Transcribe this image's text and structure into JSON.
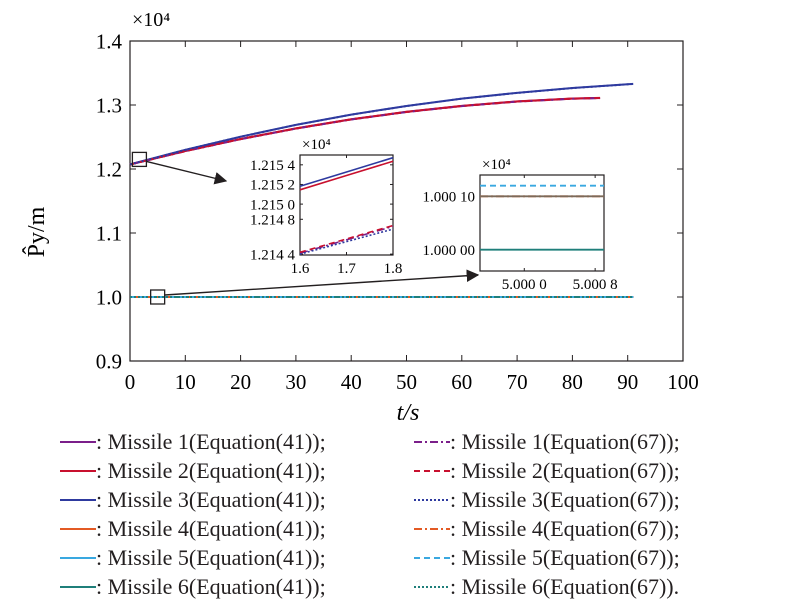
{
  "chart_data": {
    "type": "line",
    "main": {
      "xlabel": "t/s",
      "ylabel": "P̂y/m",
      "multiplier": "×10⁴",
      "xlim": [
        0,
        100
      ],
      "ylim": [
        0.9,
        1.4
      ],
      "xticks": [
        "0",
        "10",
        "20",
        "30",
        "40",
        "50",
        "60",
        "70",
        "80",
        "90",
        "100"
      ],
      "yticks": [
        "0.9",
        "1.0",
        "1.1",
        "1.2",
        "1.3",
        "1.4"
      ],
      "grid": false,
      "series": [
        {
          "name": "Missile 1(Equation(41))",
          "color": "#7b1f8a",
          "dash": "solid",
          "x": [
            0,
            10,
            20,
            30,
            40,
            50,
            60,
            70,
            80,
            85
          ],
          "y": [
            1.2072,
            1.228,
            1.2468,
            1.2633,
            1.2776,
            1.2892,
            1.2985,
            1.3055,
            1.31,
            1.311
          ]
        },
        {
          "name": "Missile 2(Equation(41))",
          "color": "#c8102e",
          "dash": "solid",
          "x": [
            0,
            10,
            20,
            30,
            40,
            50,
            60,
            70,
            80,
            85
          ],
          "y": [
            1.2072,
            1.2282,
            1.247,
            1.2635,
            1.2778,
            1.2894,
            1.2987,
            1.3057,
            1.3102,
            1.3112
          ]
        },
        {
          "name": "Missile 3(Equation(41))",
          "color": "#2e3a9f",
          "dash": "solid",
          "x": [
            0,
            10,
            20,
            30,
            40,
            50,
            60,
            70,
            80,
            91
          ],
          "y": [
            1.2072,
            1.23,
            1.2505,
            1.269,
            1.285,
            1.2985,
            1.31,
            1.319,
            1.3265,
            1.333
          ]
        },
        {
          "name": "Missile 4(Equation(41))",
          "color": "#e35a24",
          "dash": "solid",
          "x": [
            0,
            91
          ],
          "y": [
            1.0,
            1.0
          ]
        },
        {
          "name": "Missile 5(Equation(41))",
          "color": "#39a8e0",
          "dash": "solid",
          "x": [
            0,
            91
          ],
          "y": [
            1.0,
            1.0
          ]
        },
        {
          "name": "Missile 6(Equation(41))",
          "color": "#1f7f7a",
          "dash": "solid",
          "x": [
            0,
            91
          ],
          "y": [
            1.0,
            1.0
          ]
        },
        {
          "name": "Missile 1(Equation(67))",
          "color": "#7b1f8a",
          "dash": "dashdot",
          "x": [
            0,
            10,
            20,
            30,
            40,
            50,
            60,
            70,
            80,
            85
          ],
          "y": [
            1.207,
            1.2278,
            1.2466,
            1.2631,
            1.2774,
            1.289,
            1.2983,
            1.3053,
            1.3098,
            1.3108
          ]
        },
        {
          "name": "Missile 2(Equation(67))",
          "color": "#c8102e",
          "dash": "dash",
          "x": [
            0,
            10,
            20,
            30,
            40,
            50,
            60,
            70,
            80,
            85
          ],
          "y": [
            1.207,
            1.2279,
            1.2467,
            1.2632,
            1.2775,
            1.2891,
            1.2984,
            1.3054,
            1.3099,
            1.3109
          ]
        },
        {
          "name": "Missile 3(Equation(67))",
          "color": "#2e3a9f",
          "dash": "dot",
          "x": [
            0,
            10,
            20,
            30,
            40,
            50,
            60,
            70,
            80,
            91
          ],
          "y": [
            1.2071,
            1.2299,
            1.2504,
            1.2689,
            1.2849,
            1.2984,
            1.3099,
            1.3189,
            1.3264,
            1.3329
          ]
        },
        {
          "name": "Missile 4(Equation(67))",
          "color": "#e35a24",
          "dash": "dashdot",
          "x": [
            0,
            91
          ],
          "y": [
            1.0,
            1.0
          ]
        },
        {
          "name": "Missile 5(Equation(67))",
          "color": "#39a8e0",
          "dash": "dash",
          "x": [
            0,
            91
          ],
          "y": [
            1.0,
            1.0
          ]
        },
        {
          "name": "Missile 6(Equation(67))",
          "color": "#1f7f7a",
          "dash": "dot",
          "x": [
            0,
            91
          ],
          "y": [
            1.0,
            1.0
          ]
        }
      ]
    },
    "inset1": {
      "xlim": [
        1.6,
        1.8
      ],
      "ylim": [
        1.21443,
        1.21555
      ],
      "xticks": [
        "1.6",
        "1.7",
        "1.8"
      ],
      "yticks": [
        "1.214 4",
        "1.214 8",
        "1.215 0",
        "1.215 2",
        "1.215 4"
      ],
      "multiplier": "×10⁴",
      "series": [
        {
          "color": "#2e3a9f",
          "dash": "solid",
          "x": [
            1.6,
            1.7,
            1.8
          ],
          "y": [
            1.2152,
            1.21536,
            1.21552
          ]
        },
        {
          "color": "#c8102e",
          "dash": "solid",
          "x": [
            1.6,
            1.7,
            1.8
          ],
          "y": [
            1.21516,
            1.21532,
            1.21548
          ]
        },
        {
          "color": "#7b1f8a",
          "dash": "dashdot",
          "x": [
            1.6,
            1.7,
            1.8
          ],
          "y": [
            1.21445,
            1.2146,
            1.21475
          ]
        },
        {
          "color": "#c8102e",
          "dash": "dash",
          "x": [
            1.6,
            1.7,
            1.8
          ],
          "y": [
            1.21446,
            1.21461,
            1.21476
          ]
        },
        {
          "color": "#2e3a9f",
          "dash": "dot",
          "x": [
            1.6,
            1.7,
            1.8
          ],
          "y": [
            1.21444,
            1.21458,
            1.21472
          ]
        }
      ]
    },
    "inset2": {
      "xlim": [
        4.9995,
        5.0009
      ],
      "ylim": [
        0.99996,
        1.00014
      ],
      "xticks": [
        "5.000 0",
        "5.000 8"
      ],
      "yticks": [
        "1.000 00",
        "1.000 10"
      ],
      "multiplier": "×10⁴",
      "series": [
        {
          "color": "#39a8e0",
          "dash": "dash",
          "x": [
            4.9995,
            5.0009
          ],
          "y": [
            1.00012,
            1.00012
          ]
        },
        {
          "color": "#e35a24",
          "dash": "dashdot",
          "x": [
            4.9995,
            5.0009
          ],
          "y": [
            1.0001,
            1.0001
          ]
        },
        {
          "color": "#7b6a5a",
          "dash": "solid",
          "x": [
            4.9995,
            5.0009
          ],
          "y": [
            1.0001,
            1.0001
          ]
        },
        {
          "color": "#1f7f7a",
          "dash": "solid",
          "x": [
            4.9995,
            5.0009
          ],
          "y": [
            1.0,
            1.0
          ]
        }
      ]
    }
  },
  "legend": [
    {
      "label": ": Missile 1(Equation(41));",
      "color": "#7b1f8a",
      "dash": "solid"
    },
    {
      "label": ": Missile 1(Equation(67));",
      "color": "#7b1f8a",
      "dash": "dashdot"
    },
    {
      "label": ": Missile 2(Equation(41));",
      "color": "#c8102e",
      "dash": "solid"
    },
    {
      "label": ": Missile 2(Equation(67));",
      "color": "#c8102e",
      "dash": "dash"
    },
    {
      "label": ": Missile 3(Equation(41));",
      "color": "#2e3a9f",
      "dash": "solid"
    },
    {
      "label": ": Missile 3(Equation(67));",
      "color": "#2e3a9f",
      "dash": "dot"
    },
    {
      "label": ": Missile 4(Equation(41));",
      "color": "#e35a24",
      "dash": "solid"
    },
    {
      "label": ": Missile 4(Equation(67));",
      "color": "#e35a24",
      "dash": "dashdot"
    },
    {
      "label": ": Missile 5(Equation(41));",
      "color": "#39a8e0",
      "dash": "solid"
    },
    {
      "label": ": Missile 5(Equation(67));",
      "color": "#39a8e0",
      "dash": "dash"
    },
    {
      "label": ": Missile 6(Equation(41));",
      "color": "#1f7f7a",
      "dash": "solid"
    },
    {
      "label": ": Missile 6(Equation(67)).",
      "color": "#1f7f7a",
      "dash": "dot"
    }
  ]
}
